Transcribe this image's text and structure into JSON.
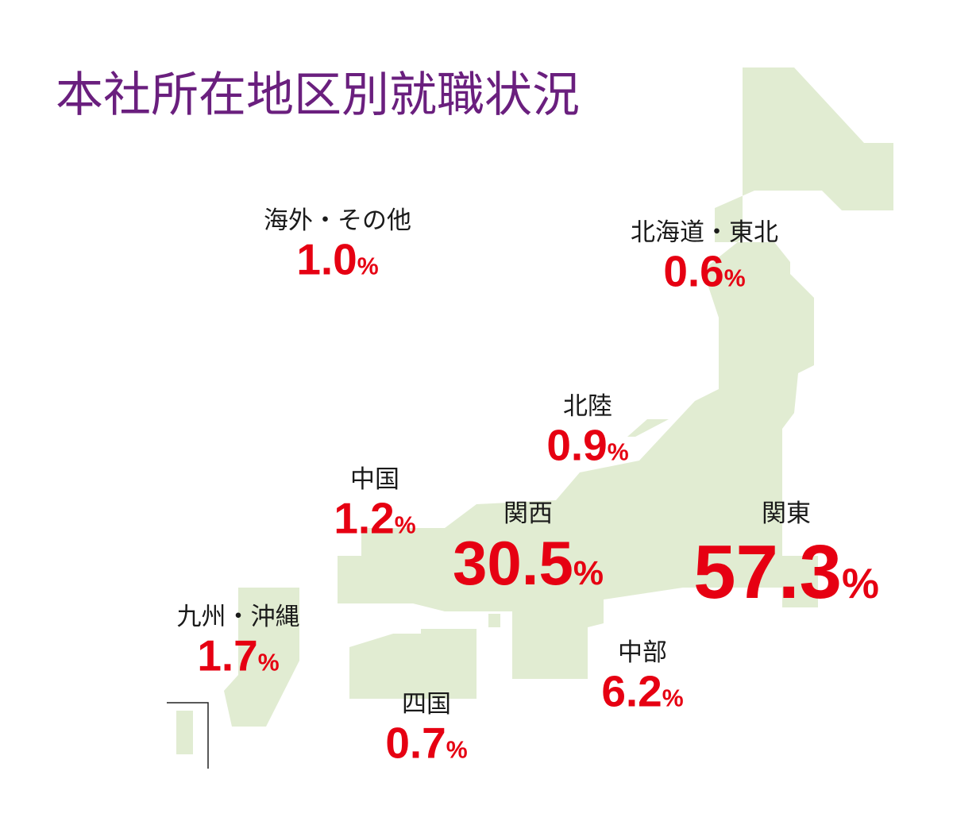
{
  "title": "本社所在地区別就職状況",
  "unit": "%",
  "regions": [
    {
      "name": "海外・その他",
      "value": "1.0"
    },
    {
      "name": "北海道・東北",
      "value": "0.6"
    },
    {
      "name": "北陸",
      "value": "0.9"
    },
    {
      "name": "中国",
      "value": "1.2"
    },
    {
      "name": "関西",
      "value": "30.5"
    },
    {
      "name": "関東",
      "value": "57.3"
    },
    {
      "name": "九州・沖縄",
      "value": "1.7"
    },
    {
      "name": "中部",
      "value": "6.2"
    },
    {
      "name": "四国",
      "value": "0.7"
    }
  ]
}
